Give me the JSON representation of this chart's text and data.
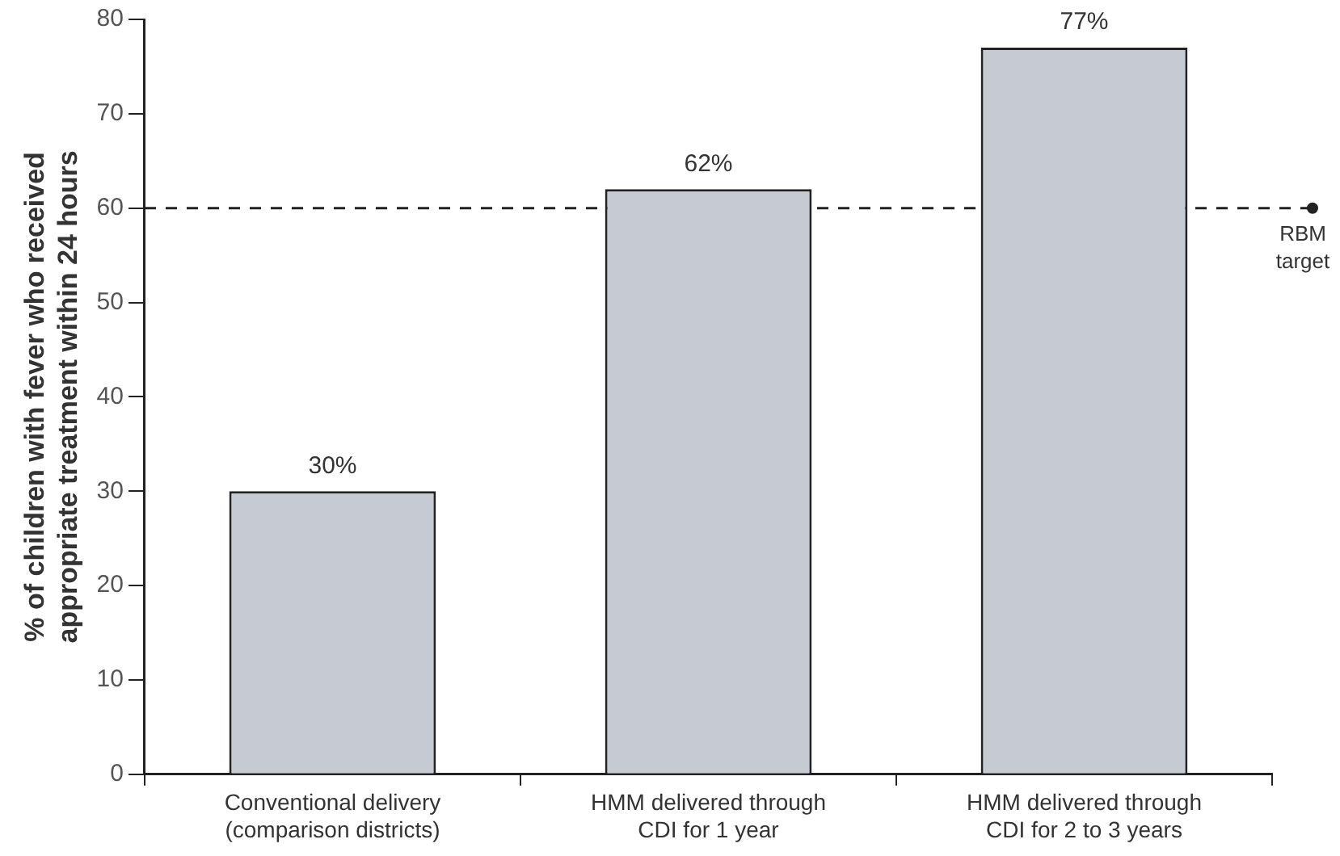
{
  "chart_data": {
    "type": "bar",
    "ylabel": "% of children with fever who received appropriate treatment within 24 hours",
    "categories": [
      "Conventional delivery (comparison districts)",
      "HMM delivered through CDI for 1 year",
      "HMM delivered through CDI for 2 to 3 years"
    ],
    "values": [
      30,
      62,
      77
    ],
    "color": "#c6cad3",
    "value_labels": [
      "30%",
      "62%",
      "77%"
    ],
    "ylim": [
      0,
      80
    ],
    "yticks": [
      0,
      10,
      20,
      30,
      40,
      50,
      60,
      70,
      80
    ],
    "ref_lines": [
      {
        "axis": "y",
        "value": 60,
        "label": "RBM target",
        "color": "#222222",
        "line_style": "dashed"
      }
    ],
    "grid": false
  }
}
